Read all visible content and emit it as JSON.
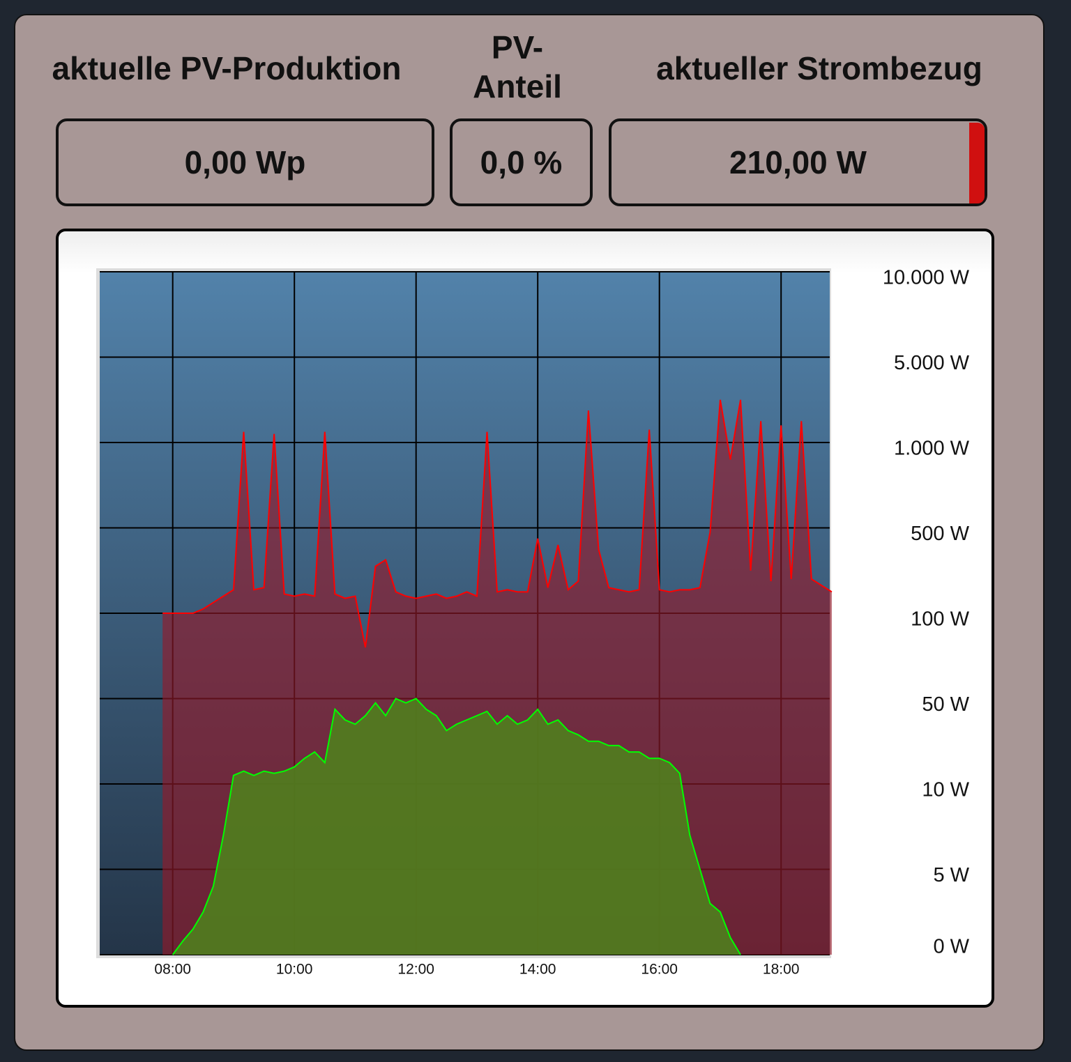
{
  "header": {
    "pv_label": "aktuelle PV-Produktion",
    "share_label": "PV-Anteil",
    "grid_label": "aktueller Strombezug"
  },
  "values": {
    "pv": "0,00 Wp",
    "share": "0,0 %",
    "grid": "210,00 W"
  },
  "chart_data": {
    "type": "line",
    "area": true,
    "grid": true,
    "yscale": "tick-spaced",
    "x": [
      "07:50",
      "08:00",
      "08:10",
      "08:20",
      "08:30",
      "08:40",
      "08:50",
      "09:00",
      "09:10",
      "09:20",
      "09:30",
      "09:40",
      "09:50",
      "10:00",
      "10:10",
      "10:20",
      "10:30",
      "10:40",
      "10:50",
      "11:00",
      "11:10",
      "11:20",
      "11:30",
      "11:40",
      "11:50",
      "12:00",
      "12:10",
      "12:20",
      "12:30",
      "12:40",
      "12:50",
      "13:00",
      "13:10",
      "13:20",
      "13:30",
      "13:40",
      "13:50",
      "14:00",
      "14:10",
      "14:20",
      "14:30",
      "14:40",
      "14:50",
      "15:00",
      "15:10",
      "15:20",
      "15:30",
      "15:40",
      "15:50",
      "16:00",
      "16:10",
      "16:20",
      "16:30",
      "16:40",
      "16:50",
      "17:00",
      "17:10",
      "17:20",
      "17:30",
      "17:40",
      "17:50",
      "18:00",
      "18:10",
      "18:20",
      "18:30",
      "18:40",
      "18:50"
    ],
    "series": [
      {
        "color": "#ff0000",
        "values": [
          100,
          100,
          100,
          100,
          120,
          150,
          180,
          210,
          1500,
          210,
          220,
          1400,
          190,
          180,
          190,
          180,
          1500,
          190,
          170,
          180,
          80,
          320,
          350,
          200,
          180,
          170,
          180,
          190,
          170,
          180,
          200,
          180,
          1500,
          200,
          210,
          200,
          200,
          450,
          220,
          420,
          210,
          250,
          2500,
          400,
          220,
          210,
          200,
          210,
          1600,
          210,
          200,
          210,
          210,
          220,
          480,
          3000,
          900,
          3000,
          300,
          2000,
          250,
          1800,
          260,
          2000,
          260,
          230,
          200
        ]
      },
      {
        "color": "#00ff00",
        "values": [
          null,
          0,
          0.8,
          1.5,
          2.5,
          4,
          7,
          14,
          16,
          14,
          16,
          15,
          16,
          18,
          22,
          25,
          20,
          45,
          40,
          38,
          42,
          48,
          42,
          50,
          48,
          50,
          45,
          42,
          35,
          38,
          40,
          42,
          44,
          38,
          42,
          38,
          40,
          45,
          38,
          40,
          35,
          33,
          30,
          30,
          28,
          28,
          25,
          25,
          22,
          22,
          20,
          15,
          7,
          5,
          3,
          2.5,
          1,
          0,
          null,
          null,
          null,
          null,
          null,
          null,
          null,
          null,
          null
        ]
      }
    ],
    "xlim": [
      "06:48",
      "18:48"
    ],
    "xticks": [
      "08:00",
      "10:00",
      "12:00",
      "14:00",
      "16:00",
      "18:00"
    ],
    "ylim": [
      0,
      10000
    ],
    "yticks": [
      {
        "value": 0,
        "label": "0 W"
      },
      {
        "value": 5,
        "label": "5 W"
      },
      {
        "value": 10,
        "label": "10 W"
      },
      {
        "value": 50,
        "label": "50 W"
      },
      {
        "value": 100,
        "label": "100 W"
      },
      {
        "value": 500,
        "label": "500 W"
      },
      {
        "value": 1000,
        "label": "1.000 W"
      },
      {
        "value": 5000,
        "label": "5.000 W"
      },
      {
        "value": 10000,
        "label": "10.000 W"
      }
    ]
  }
}
